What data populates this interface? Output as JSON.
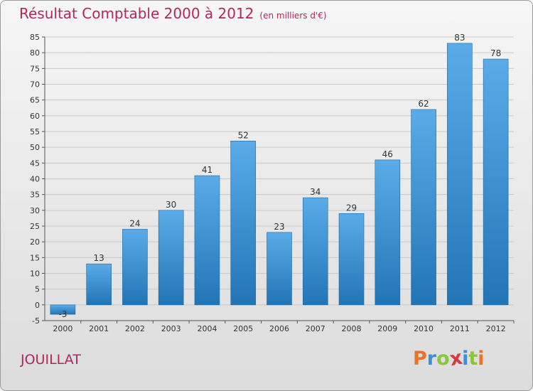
{
  "title": "Résultat Comptable 2000 à 2012",
  "subtitle": "(en milliers d'€)",
  "town": "JOUILLAT",
  "logo": {
    "letters": [
      {
        "ch": "P",
        "color": "#e8742a"
      },
      {
        "ch": "r",
        "color": "#3d8fd6"
      },
      {
        "ch": "o",
        "color": "#8cc63f"
      },
      {
        "ch": "x",
        "color": "#d63a3a"
      },
      {
        "ch": "i",
        "color": "#3d8fd6"
      },
      {
        "ch": "t",
        "color": "#8cc63f"
      },
      {
        "ch": "i",
        "color": "#e8742a"
      }
    ]
  },
  "colors": {
    "bar_top": "#5aabe8",
    "bar_bottom": "#2275b5",
    "title": "#b0285a",
    "grid": "#c8c8c8"
  },
  "chart_data": {
    "type": "bar",
    "categories": [
      "2000",
      "2001",
      "2002",
      "2003",
      "2004",
      "2005",
      "2006",
      "2007",
      "2008",
      "2009",
      "2010",
      "2011",
      "2012"
    ],
    "values": [
      -3,
      13,
      24,
      30,
      41,
      52,
      23,
      34,
      29,
      46,
      62,
      83,
      78
    ],
    "data_labels": [
      "-3",
      "13",
      "24",
      "30",
      "41",
      "52",
      "23",
      "34",
      "29",
      "46",
      "62",
      "83",
      "78"
    ],
    "yticks": [
      "-5",
      "0",
      "5",
      "10",
      "15",
      "20",
      "25",
      "30",
      "35",
      "40",
      "45",
      "50",
      "55",
      "60",
      "65",
      "70",
      "75",
      "80",
      "85"
    ],
    "ylim": [
      -5,
      85
    ],
    "grid": "horizontal"
  }
}
